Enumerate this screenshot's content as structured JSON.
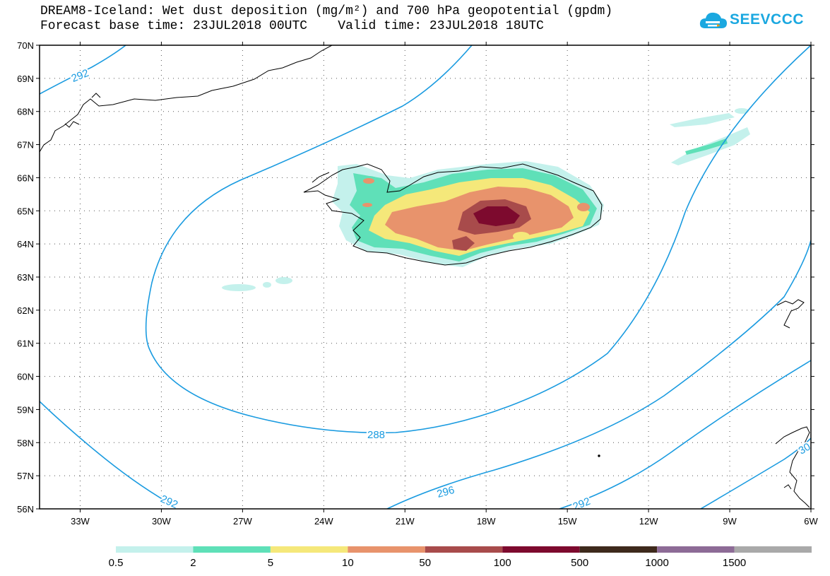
{
  "title": {
    "line1": "DREAM8-Iceland: Wet dust deposition (mg/m²) and 700 hPa geopotential (gpdm)",
    "line2": "Forecast base time: 23JUL2018 00UTC    Valid time: 23JUL2018 18UTC"
  },
  "logo": {
    "text": "SEEVCCC",
    "icon": "cloud-icon"
  },
  "map": {
    "lon_range": [
      -34.5,
      -6
    ],
    "lat_range": [
      56,
      70
    ],
    "lat_ticks": [
      "70N",
      "69N",
      "68N",
      "67N",
      "66N",
      "65N",
      "64N",
      "63N",
      "62N",
      "61N",
      "60N",
      "59N",
      "58N",
      "57N",
      "56N"
    ],
    "lon_ticks": [
      "33W",
      "30W",
      "27W",
      "24W",
      "21W",
      "18W",
      "15W",
      "12W",
      "9W",
      "6W"
    ],
    "gridlines": "dotted",
    "contour_color": "#1a9be0",
    "contour_labels": [
      "292",
      "288",
      "292",
      "296",
      "292",
      "30"
    ]
  },
  "legend": {
    "bins": [
      {
        "color": "#c4f1ec",
        "label": "0.5"
      },
      {
        "color": "#5fe0b8",
        "label": "2"
      },
      {
        "color": "#f5e87a",
        "label": "5"
      },
      {
        "color": "#e8936c",
        "label": "10"
      },
      {
        "color": "#a84b4b",
        "label": "50"
      },
      {
        "color": "#7d0a2e",
        "label": "100"
      },
      {
        "color": "#3e2a1c",
        "label": "500"
      },
      {
        "color": "#8d6b96",
        "label": "1000"
      },
      {
        "color": "#a9a9a9",
        "label": "1500"
      }
    ]
  }
}
